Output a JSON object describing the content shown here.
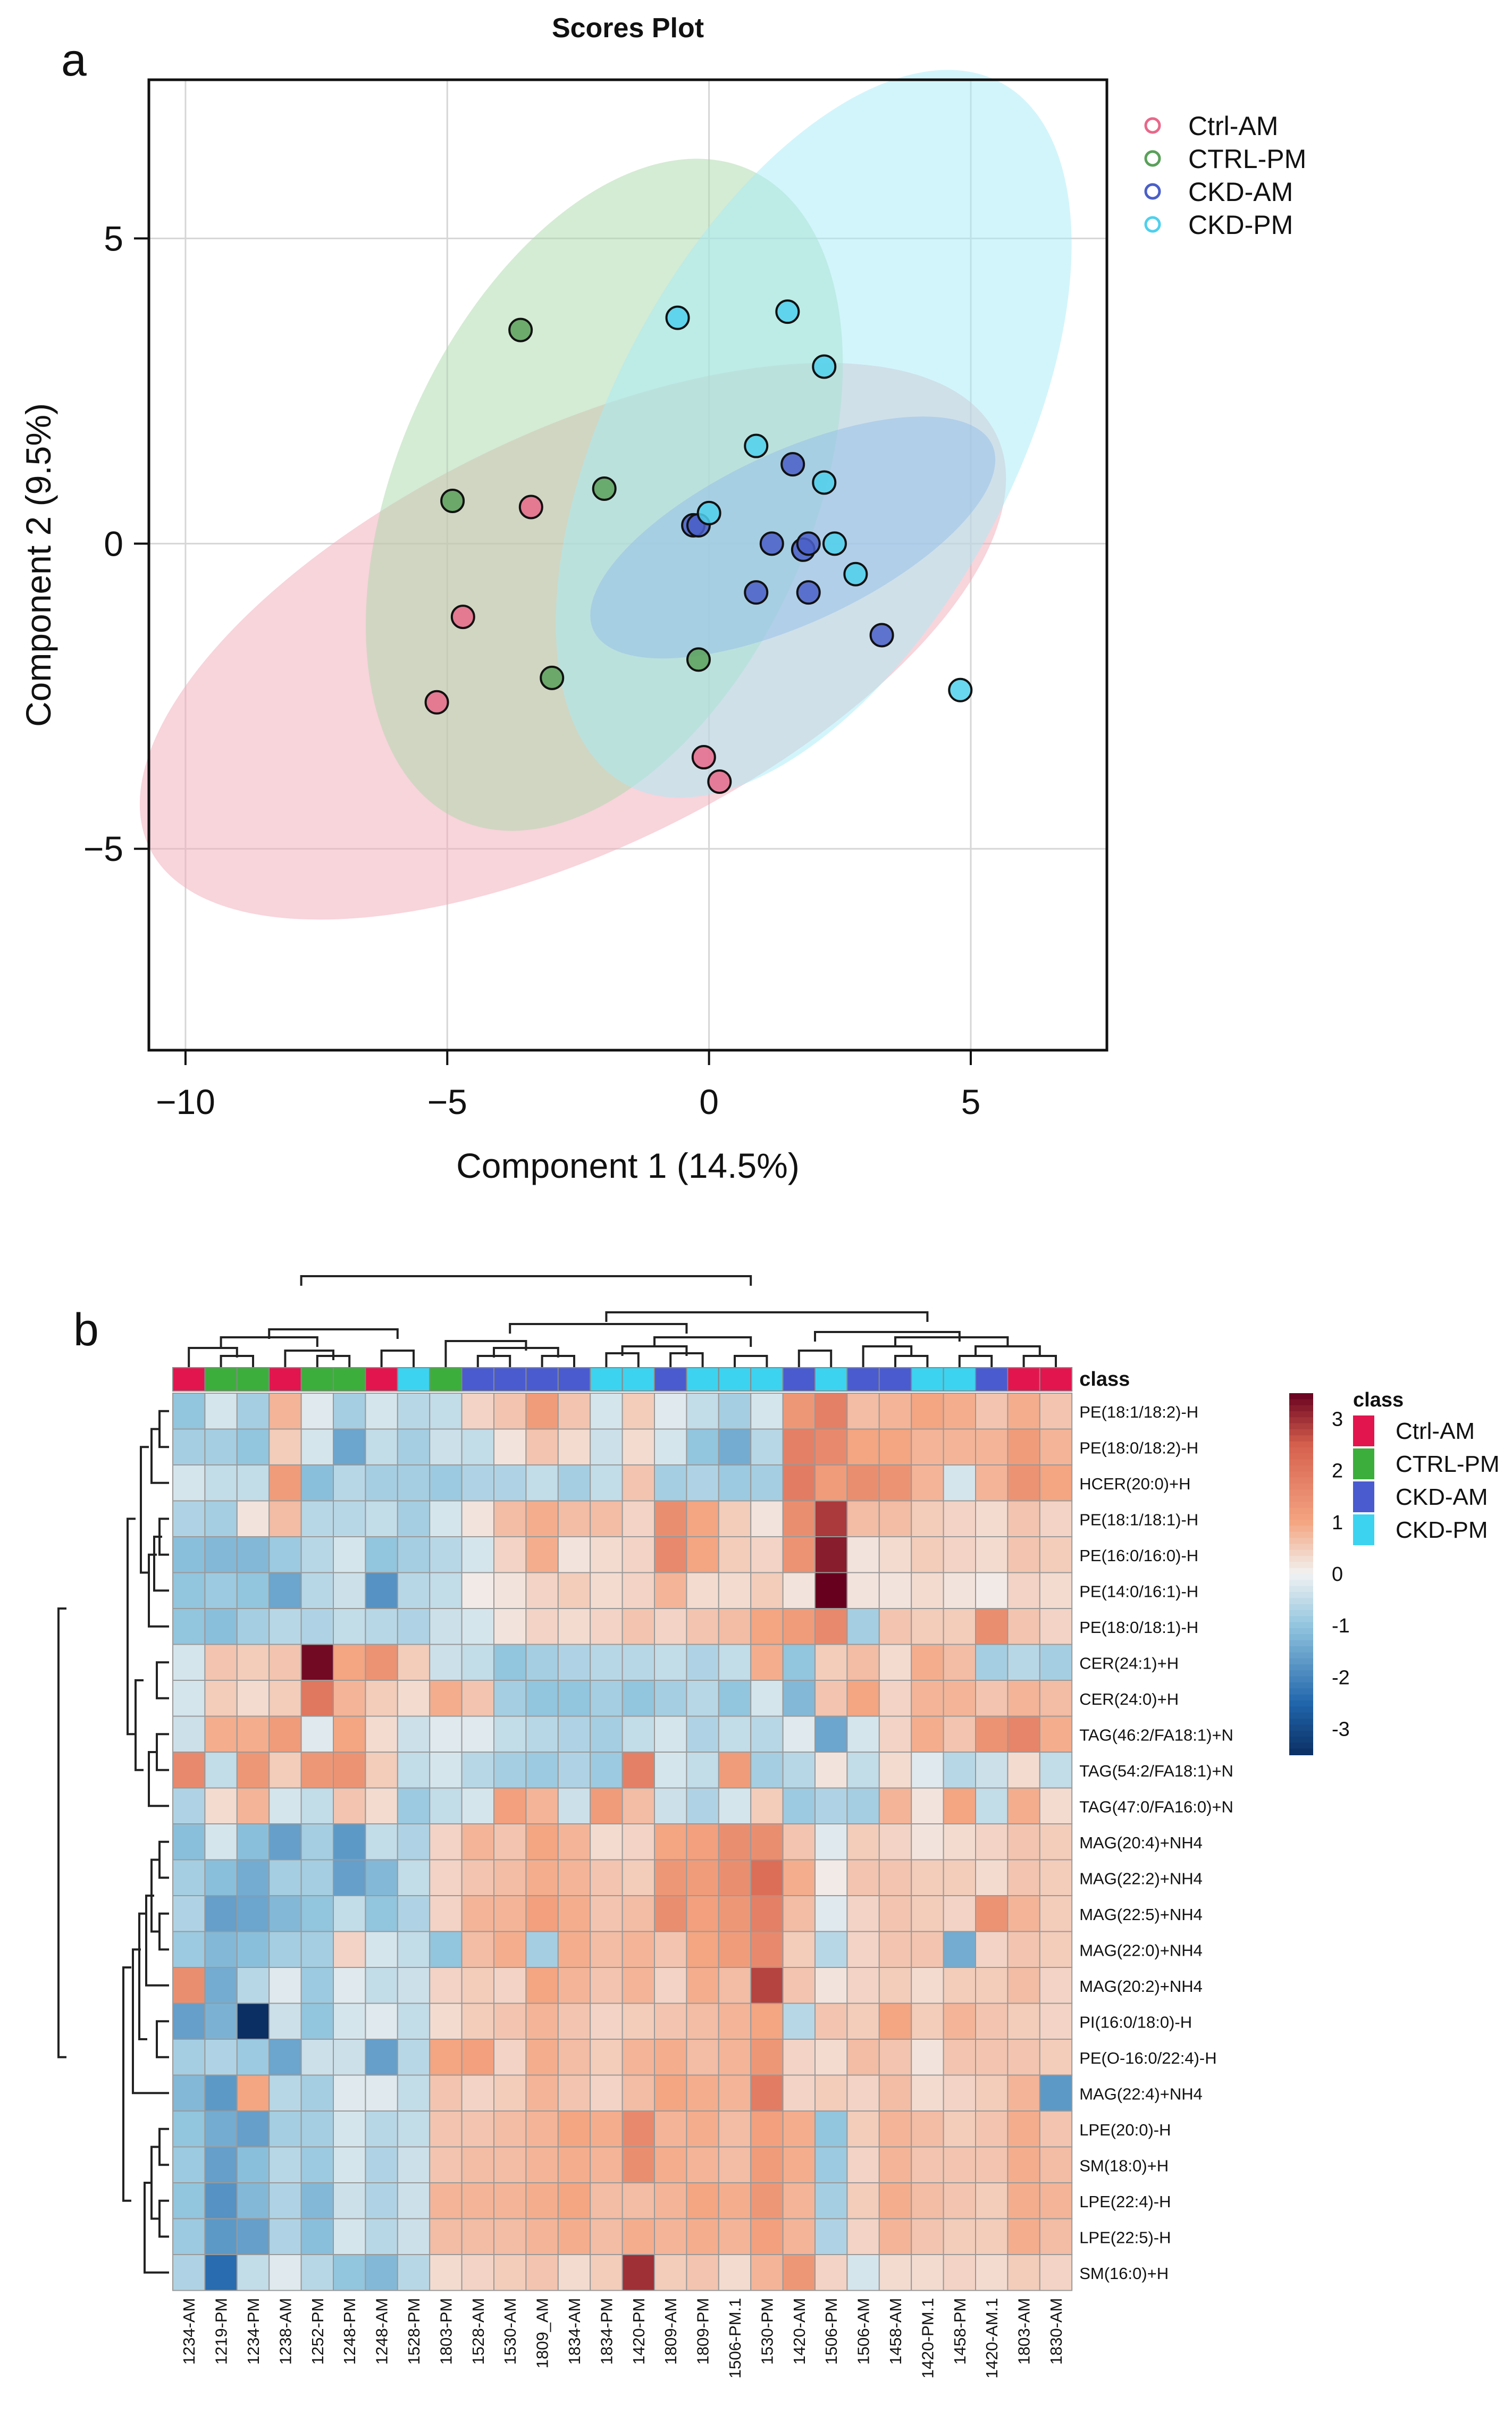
{
  "panel_labels": {
    "a": "a",
    "b": "b"
  },
  "chart_data": [
    {
      "type": "scatter",
      "title": "Scores Plot",
      "xlabel": "Component 1 (14.5%)",
      "ylabel": "Component  2 (9.5%)",
      "xlim": [
        -10.7,
        7.6
      ],
      "ylim": [
        -8.3,
        7.6
      ],
      "xticks": [
        -10,
        -5,
        0,
        5
      ],
      "xtick_labels": [
        "−10",
        "−5",
        "0",
        "5"
      ],
      "yticks": [
        -5,
        0,
        5
      ],
      "ytick_labels": [
        "−5",
        "0",
        "5"
      ],
      "grid": true,
      "legend_position": "top-right",
      "series": [
        {
          "name": "Ctrl-AM",
          "color": "#e8688a",
          "fill": "#f2a9b8",
          "points": [
            [
              -3.4,
              0.6
            ],
            [
              -4.7,
              -1.2
            ],
            [
              -5.2,
              -2.6
            ],
            [
              -0.1,
              -3.5
            ],
            [
              0.2,
              -3.9
            ]
          ],
          "ellipse": {
            "cx": -2.6,
            "cy": -1.6,
            "rx": 9.0,
            "ry": 3.4,
            "angle_deg": -26
          }
        },
        {
          "name": "CTRL-PM",
          "color": "#5aa05a",
          "fill": "#a9d8a9",
          "points": [
            [
              -3.6,
              3.5
            ],
            [
              -4.9,
              0.7
            ],
            [
              -2.0,
              0.9
            ],
            [
              -3.0,
              -2.2
            ],
            [
              -0.2,
              -1.9
            ]
          ],
          "ellipse": {
            "cx": -2.0,
            "cy": 0.8,
            "rx": 6.8,
            "ry": 3.4,
            "angle_deg": -66
          }
        },
        {
          "name": "CKD-AM",
          "color": "#4a5fc8",
          "fill": "#7f8fdc",
          "points": [
            [
              -0.3,
              0.3
            ],
            [
              -0.2,
              0.3
            ],
            [
              1.2,
              0.0
            ],
            [
              1.6,
              1.3
            ],
            [
              1.8,
              -0.1
            ],
            [
              1.9,
              0.0
            ],
            [
              0.9,
              -0.8
            ],
            [
              1.9,
              -0.8
            ],
            [
              3.3,
              -1.5
            ]
          ],
          "ellipse": {
            "cx": 1.6,
            "cy": 0.1,
            "rx": 4.2,
            "ry": 1.4,
            "angle_deg": -25
          }
        },
        {
          "name": "CKD-PM",
          "color": "#4fd0ec",
          "fill": "#a6ebf7",
          "points": [
            [
              -0.6,
              3.7
            ],
            [
              1.5,
              3.8
            ],
            [
              2.2,
              2.9
            ],
            [
              0.9,
              1.6
            ],
            [
              2.2,
              1.0
            ],
            [
              0.0,
              0.5
            ],
            [
              2.4,
              0.0
            ],
            [
              2.8,
              -0.5
            ],
            [
              4.8,
              -2.4
            ]
          ],
          "ellipse": {
            "cx": 2.0,
            "cy": 1.8,
            "rx": 7.6,
            "ry": 3.3,
            "angle_deg": -62
          }
        }
      ]
    },
    {
      "type": "heatmap",
      "columns": [
        "1234-AM",
        "1219-PM",
        "1234-PM",
        "1238-AM",
        "1252-PM",
        "1248-PM",
        "1248-AM",
        "1528-PM",
        "1803-PM",
        "1528-AM",
        "1530-AM",
        "1809_AM",
        "1834-AM",
        "1834-PM",
        "1420-PM",
        "1809-AM",
        "1809-PM",
        "1506-PM.1",
        "1530-PM",
        "1420-AM",
        "1506-PM",
        "1506-AM",
        "1458-AM",
        "1420-PM.1",
        "1458-PM",
        "1420-AM.1",
        "1803-AM",
        "1830-AM"
      ],
      "column_classes": [
        "Ctrl-AM",
        "CTRL-PM",
        "CTRL-PM",
        "Ctrl-AM",
        "CTRL-PM",
        "CTRL-PM",
        "Ctrl-AM",
        "CKD-PM",
        "CTRL-PM",
        "CKD-AM",
        "CKD-AM",
        "CKD-AM",
        "CKD-AM",
        "CKD-PM",
        "CKD-PM",
        "CKD-AM",
        "CKD-PM",
        "CKD-PM",
        "CKD-PM",
        "CKD-AM",
        "CKD-PM",
        "CKD-AM",
        "CKD-AM",
        "CKD-PM",
        "CKD-PM",
        "CKD-AM",
        "Ctrl-AM",
        "Ctrl-AM"
      ],
      "class_header": "class",
      "class_legend_title": "class",
      "class_colors": {
        "Ctrl-AM": "#e3154e",
        "CTRL-PM": "#3cae3c",
        "CKD-AM": "#4a5bd0",
        "CKD-PM": "#3cd3f0"
      },
      "class_order": [
        "Ctrl-AM",
        "CTRL-PM",
        "CKD-AM",
        "CKD-PM"
      ],
      "rows": [
        "PE(18:1/18:2)-H",
        "PE(18:0/18:2)-H",
        "HCER(20:0)+H",
        "PE(18:1/18:1)-H",
        "PE(16:0/16:0)-H",
        "PE(14:0/16:1)-H",
        "PE(18:0/18:1)-H",
        "CER(24:1)+H",
        "CER(24:0)+H",
        "TAG(46:2/FA18:1)+N",
        "TAG(54:2/FA18:1)+N",
        "TAG(47:0/FA16:0)+N",
        "MAG(20:4)+NH4",
        "MAG(22:2)+NH4",
        "MAG(22:5)+NH4",
        "MAG(22:0)+NH4",
        "MAG(20:2)+NH4",
        "PI(16:0/18:0)-H",
        "PE(O-16:0/22:4)-H",
        "MAG(22:4)+NH4",
        "LPE(20:0)-H",
        "SM(18:0)+H",
        "LPE(22:4)-H",
        "LPE(22:5)-H",
        "SM(16:0)+H"
      ],
      "value_range": [
        -3.5,
        3.5
      ],
      "colorbar_ticks": [
        3,
        2,
        1,
        0,
        -1,
        -2,
        -3
      ],
      "colorbar_tick_labels": [
        "3",
        "2",
        "1",
        "0",
        "-1",
        "-2",
        "-3"
      ],
      "values": [
        [
          -1.0,
          -0.3,
          -0.8,
          0.8,
          -0.2,
          -0.8,
          -0.3,
          -0.6,
          -0.5,
          0.4,
          0.6,
          1.2,
          0.6,
          -0.3,
          0.5,
          -0.2,
          -0.5,
          -0.8,
          -0.3,
          1.3,
          1.8,
          0.7,
          0.8,
          1.0,
          0.9,
          0.6,
          0.9,
          0.6
        ],
        [
          -0.8,
          -0.8,
          -1.0,
          0.5,
          -0.3,
          -1.5,
          -0.5,
          -0.8,
          -0.4,
          -0.5,
          0.2,
          0.6,
          0.3,
          -0.4,
          0.3,
          -0.3,
          -1.0,
          -1.4,
          -0.6,
          1.8,
          1.6,
          1.0,
          1.0,
          0.8,
          0.8,
          0.8,
          1.2,
          0.8
        ],
        [
          -0.3,
          -0.5,
          -0.5,
          1.2,
          -1.1,
          -0.6,
          -0.8,
          -0.8,
          -0.9,
          -0.7,
          -0.7,
          -0.5,
          -0.8,
          -0.5,
          0.6,
          -0.8,
          -0.7,
          -0.9,
          -0.8,
          1.9,
          1.2,
          1.5,
          1.4,
          0.8,
          -0.3,
          0.8,
          1.4,
          1.0
        ],
        [
          -0.7,
          -0.8,
          0.2,
          0.7,
          -0.6,
          -0.6,
          -0.5,
          -0.8,
          -0.3,
          0.2,
          0.7,
          0.9,
          0.7,
          0.7,
          0.4,
          1.5,
          1.0,
          0.5,
          0.2,
          1.5,
          2.9,
          0.7,
          0.7,
          0.5,
          0.4,
          0.3,
          0.6,
          0.4
        ],
        [
          -1.1,
          -1.2,
          -1.2,
          -0.9,
          -0.6,
          -0.3,
          -1.0,
          -0.8,
          -0.6,
          -0.3,
          0.4,
          0.9,
          0.2,
          0.3,
          0.4,
          1.6,
          1.0,
          0.5,
          0.4,
          1.4,
          3.2,
          0.2,
          0.3,
          0.5,
          0.4,
          0.3,
          0.6,
          0.5
        ],
        [
          -1.0,
          -0.9,
          -1.0,
          -1.5,
          -0.6,
          -0.4,
          -1.8,
          -0.6,
          -0.5,
          0.1,
          0.2,
          0.4,
          0.5,
          0.3,
          0.4,
          0.8,
          0.3,
          0.3,
          0.5,
          0.2,
          3.8,
          0.2,
          0.2,
          0.3,
          0.2,
          0.1,
          0.4,
          0.3
        ],
        [
          -1.0,
          -1.1,
          -0.8,
          -0.6,
          -0.7,
          -0.5,
          -0.6,
          -0.7,
          -0.4,
          -0.3,
          0.2,
          0.4,
          0.3,
          0.4,
          0.6,
          0.4,
          0.6,
          0.7,
          1.0,
          1.2,
          1.6,
          -0.8,
          0.6,
          0.5,
          0.5,
          1.5,
          0.6,
          0.4
        ],
        [
          -0.3,
          0.6,
          0.5,
          0.6,
          3.4,
          1.0,
          1.4,
          0.5,
          -0.4,
          -0.5,
          -1.0,
          -0.8,
          -0.7,
          -0.6,
          -0.6,
          -0.5,
          -0.7,
          -0.5,
          0.9,
          -1.0,
          0.5,
          0.7,
          0.3,
          0.9,
          0.7,
          -0.8,
          -0.6,
          -0.8
        ],
        [
          -0.3,
          0.5,
          0.3,
          0.5,
          2.0,
          0.8,
          0.5,
          0.3,
          0.9,
          0.6,
          -0.8,
          -1.0,
          -1.0,
          -0.8,
          -1.0,
          -0.8,
          -0.6,
          -1.0,
          -0.3,
          -1.2,
          0.6,
          1.0,
          0.4,
          0.8,
          0.8,
          0.6,
          0.8,
          0.7
        ],
        [
          -0.4,
          0.9,
          0.9,
          1.2,
          -0.2,
          1.0,
          0.3,
          -0.4,
          -0.2,
          -0.2,
          -0.5,
          -0.6,
          -0.7,
          -0.8,
          -0.5,
          -0.3,
          -0.7,
          -0.5,
          -0.6,
          -0.2,
          -1.5,
          -0.3,
          0.4,
          0.9,
          0.6,
          1.4,
          1.7,
          0.9
        ],
        [
          1.6,
          -0.5,
          1.3,
          0.5,
          1.3,
          1.4,
          0.5,
          -0.5,
          -0.3,
          -0.6,
          -0.8,
          -0.9,
          -0.7,
          -0.9,
          1.8,
          -0.3,
          -0.5,
          1.2,
          -0.8,
          -0.6,
          0.2,
          -0.5,
          0.3,
          -0.2,
          -0.6,
          -0.4,
          0.3,
          -0.5
        ],
        [
          -0.7,
          0.3,
          0.8,
          -0.3,
          -0.5,
          0.6,
          0.3,
          -0.9,
          -0.5,
          -0.3,
          1.1,
          0.8,
          -0.4,
          1.2,
          0.7,
          -0.4,
          -0.7,
          -0.3,
          0.5,
          -0.9,
          -0.7,
          -0.8,
          0.8,
          0.2,
          1.0,
          -0.5,
          0.9,
          0.3
        ],
        [
          -1.1,
          -0.3,
          -1.1,
          -1.6,
          -0.8,
          -1.7,
          -0.5,
          -0.7,
          0.4,
          0.8,
          0.6,
          1.0,
          0.8,
          0.3,
          0.4,
          1.0,
          1.1,
          1.5,
          1.5,
          0.6,
          -0.2,
          0.5,
          0.4,
          0.2,
          0.3,
          0.4,
          0.6,
          0.5
        ],
        [
          -0.8,
          -1.1,
          -1.4,
          -0.8,
          -0.8,
          -1.6,
          -1.2,
          -0.5,
          0.4,
          0.6,
          0.7,
          0.9,
          0.8,
          0.6,
          0.5,
          1.3,
          1.2,
          1.5,
          2.2,
          0.9,
          0.1,
          0.6,
          0.6,
          0.5,
          0.5,
          0.3,
          0.6,
          0.5
        ],
        [
          -0.7,
          -1.6,
          -1.5,
          -1.2,
          -1.0,
          -0.5,
          -1.0,
          -0.7,
          0.4,
          0.8,
          0.8,
          1.1,
          0.9,
          0.6,
          0.7,
          1.5,
          1.1,
          1.3,
          1.8,
          0.7,
          -0.2,
          0.4,
          0.6,
          0.5,
          0.4,
          1.4,
          0.8,
          0.5
        ],
        [
          -0.9,
          -1.2,
          -1.1,
          -0.8,
          -0.8,
          0.4,
          -0.3,
          -0.5,
          -1.0,
          0.7,
          0.9,
          -0.8,
          0.9,
          0.7,
          0.8,
          0.6,
          1.0,
          1.2,
          1.6,
          0.5,
          -0.6,
          0.4,
          0.6,
          0.6,
          -1.4,
          0.4,
          0.6,
          0.5
        ],
        [
          1.5,
          -1.4,
          -0.6,
          -0.2,
          -0.9,
          -0.2,
          -0.5,
          -0.4,
          0.4,
          0.5,
          0.4,
          1.0,
          0.8,
          0.6,
          0.8,
          0.4,
          0.9,
          0.7,
          2.8,
          0.6,
          0.2,
          0.4,
          0.5,
          0.3,
          0.5,
          0.5,
          0.7,
          0.4
        ],
        [
          -1.6,
          -1.3,
          -3.5,
          -0.4,
          -1.0,
          -0.3,
          -0.2,
          -0.5,
          0.3,
          0.5,
          0.6,
          0.8,
          0.6,
          0.4,
          0.5,
          0.6,
          0.7,
          0.8,
          1.0,
          -0.6,
          0.6,
          0.5,
          1.0,
          0.5,
          0.8,
          0.6,
          0.5,
          0.4
        ],
        [
          -0.8,
          -0.7,
          -0.9,
          -1.5,
          -0.4,
          -0.4,
          -1.6,
          -0.6,
          1.0,
          1.1,
          0.4,
          0.9,
          0.7,
          0.5,
          0.8,
          0.9,
          0.7,
          0.8,
          1.3,
          0.4,
          0.3,
          0.7,
          0.6,
          0.2,
          0.6,
          0.6,
          0.6,
          0.5
        ],
        [
          -1.2,
          -1.7,
          1.0,
          -0.6,
          -0.8,
          -0.2,
          -0.2,
          -0.5,
          0.6,
          0.4,
          0.5,
          0.8,
          0.6,
          0.4,
          0.7,
          1.0,
          0.9,
          0.8,
          1.9,
          0.4,
          0.5,
          0.4,
          0.7,
          0.3,
          0.4,
          0.5,
          0.8,
          -1.7
        ],
        [
          -1.0,
          -1.4,
          -1.6,
          -0.8,
          -0.8,
          -0.3,
          -0.6,
          -0.5,
          0.6,
          0.6,
          0.7,
          0.8,
          1.0,
          0.9,
          1.6,
          0.8,
          0.9,
          0.7,
          1.1,
          0.9,
          -1.0,
          0.5,
          0.8,
          0.7,
          0.5,
          0.6,
          0.9,
          0.6
        ],
        [
          -0.9,
          -1.6,
          -1.1,
          -0.6,
          -0.9,
          -0.3,
          -0.7,
          -0.4,
          0.6,
          0.7,
          0.7,
          0.8,
          0.9,
          0.8,
          1.5,
          0.9,
          0.8,
          0.7,
          1.2,
          0.9,
          -0.9,
          0.4,
          0.8,
          0.6,
          0.6,
          0.6,
          0.9,
          0.7
        ],
        [
          -1.0,
          -1.8,
          -1.2,
          -0.7,
          -1.2,
          -0.4,
          -0.7,
          -0.4,
          0.8,
          0.8,
          0.8,
          0.9,
          1.0,
          0.7,
          0.7,
          0.8,
          1.0,
          0.9,
          1.3,
          0.8,
          -0.8,
          0.5,
          0.9,
          0.7,
          0.6,
          0.5,
          0.9,
          0.8
        ],
        [
          -0.9,
          -1.7,
          -1.6,
          -0.7,
          -1.1,
          -0.3,
          -0.6,
          -0.4,
          0.7,
          0.7,
          0.7,
          0.8,
          0.9,
          0.7,
          0.9,
          0.8,
          0.9,
          0.8,
          1.1,
          0.8,
          -0.7,
          0.4,
          0.8,
          0.6,
          0.5,
          0.5,
          0.9,
          0.7
        ],
        [
          -0.7,
          -2.4,
          -0.5,
          -0.2,
          -0.6,
          -1.0,
          -1.2,
          -0.6,
          0.3,
          0.4,
          0.5,
          0.6,
          0.3,
          0.5,
          3.0,
          0.5,
          0.6,
          0.3,
          0.8,
          1.3,
          0.4,
          -0.3,
          0.3,
          0.3,
          0.4,
          0.3,
          0.5,
          0.4
        ]
      ]
    }
  ]
}
